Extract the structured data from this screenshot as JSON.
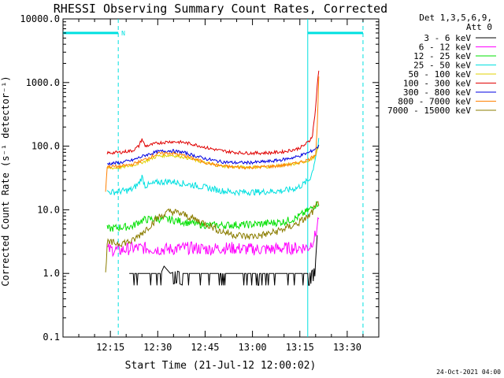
{
  "chart_data": {
    "type": "line",
    "title": "RHESSI Observing Summary Count Rates, Corrected",
    "xlabel": "Start Time (21-Jul-12 12:00:02)",
    "ylabel": "Corrected Count Rate (s⁻¹ detector⁻¹)",
    "y_scale": "log",
    "ylim": [
      0.1,
      10000
    ],
    "xlim_minutes": [
      0,
      100
    ],
    "x_ticks": [
      {
        "label": "12:15",
        "minutes": 15
      },
      {
        "label": "12:30",
        "minutes": 30
      },
      {
        "label": "12:45",
        "minutes": 45
      },
      {
        "label": "13:00",
        "minutes": 60
      },
      {
        "label": "13:15",
        "minutes": 75
      },
      {
        "label": "13:30",
        "minutes": 90
      }
    ],
    "y_ticks": [
      {
        "label": "0.1",
        "value": 0.1
      },
      {
        "label": "1.0",
        "value": 1
      },
      {
        "label": "10.0",
        "value": 10
      },
      {
        "label": "100.0",
        "value": 100
      },
      {
        "label": "1000.0",
        "value": 1000
      },
      {
        "label": "10000.0",
        "value": 10000
      }
    ],
    "legend_header": [
      "Det 1,3,5,6,9,",
      "Att 0"
    ],
    "legend_position": "right",
    "night_marker": "N",
    "footer_date": "24-Oct-2021 04:00",
    "series": [
      {
        "name": "3 - 6 keV",
        "color": "#000000",
        "x": [
          21,
          22,
          24,
          28,
          31,
          32,
          34,
          36,
          38,
          40,
          44,
          46,
          48,
          74,
          76,
          78,
          79.5,
          80,
          80.5
        ],
        "y": [
          1,
          1,
          1,
          1,
          1,
          1.3,
          1,
          1.1,
          1,
          1,
          1,
          1,
          1,
          1,
          1,
          1,
          1.2,
          1.6,
          4
        ]
      },
      {
        "name": "6 - 12 keV",
        "color": "#ff00ff",
        "x": [
          14,
          18,
          22,
          26,
          30,
          34,
          38,
          42,
          46,
          50,
          54,
          58,
          62,
          66,
          70,
          74,
          78,
          80,
          81
        ],
        "y": [
          2.4,
          2.3,
          2.5,
          2.5,
          2.4,
          2.4,
          2.5,
          2.5,
          2.4,
          2.5,
          2.5,
          2.4,
          2.4,
          2.4,
          2.5,
          2.5,
          2.6,
          4,
          8
        ]
      },
      {
        "name": "12 - 25 keV",
        "color": "#00e000",
        "x": [
          14,
          18,
          22,
          24,
          26,
          30,
          34,
          38,
          42,
          46,
          50,
          54,
          58,
          62,
          66,
          70,
          74,
          78,
          80,
          81
        ],
        "y": [
          5,
          5.3,
          5.5,
          6.5,
          7,
          7.2,
          7,
          6.5,
          6,
          5.7,
          5.7,
          5.8,
          5.8,
          6,
          6.2,
          6.5,
          7.5,
          10,
          12,
          13
        ]
      },
      {
        "name": "25 - 50 keV",
        "color": "#00e0e0",
        "x": [
          14,
          16,
          18,
          20,
          22,
          24,
          25,
          26,
          28,
          30,
          34,
          38,
          42,
          46,
          50,
          54,
          58,
          62,
          66,
          70,
          74,
          76,
          78,
          79,
          80,
          81
        ],
        "y": [
          19,
          19,
          19.5,
          20,
          21,
          26,
          33,
          24,
          25,
          27,
          28,
          26,
          24,
          22,
          20,
          19,
          19,
          19,
          19.5,
          20,
          22,
          25,
          30,
          40,
          70,
          120
        ]
      },
      {
        "name": "50 - 100 keV",
        "color": "#e0d000",
        "x": [
          14,
          18,
          22,
          26,
          30,
          34,
          38,
          42,
          46,
          50,
          54,
          58,
          62,
          66,
          70,
          74,
          78,
          80,
          81
        ],
        "y": [
          45,
          46,
          50,
          58,
          70,
          72,
          68,
          60,
          53,
          49,
          47,
          47,
          47,
          48,
          50,
          53,
          60,
          70,
          100
        ]
      },
      {
        "name": "100 - 300 keV",
        "color": "#e00000",
        "x": [
          14,
          18,
          22,
          24,
          25,
          26,
          28,
          30,
          34,
          38,
          42,
          46,
          50,
          54,
          58,
          62,
          66,
          70,
          74,
          76,
          78,
          79,
          80,
          80.5,
          81
        ],
        "y": [
          78,
          80,
          85,
          100,
          130,
          100,
          105,
          112,
          118,
          115,
          105,
          93,
          85,
          80,
          78,
          78,
          79,
          82,
          90,
          100,
          120,
          150,
          400,
          900,
          1500
        ]
      },
      {
        "name": "300 - 800 keV",
        "color": "#0000e0",
        "x": [
          14,
          18,
          22,
          26,
          30,
          34,
          38,
          42,
          46,
          50,
          54,
          58,
          62,
          66,
          70,
          74,
          78,
          80,
          81
        ],
        "y": [
          53,
          55,
          60,
          72,
          82,
          85,
          80,
          70,
          62,
          57,
          55,
          55,
          56,
          58,
          62,
          68,
          80,
          92,
          100
        ]
      },
      {
        "name": "800 - 7000 keV",
        "color": "#ff8000",
        "x": [
          13.5,
          14,
          18,
          22,
          26,
          30,
          34,
          38,
          42,
          46,
          50,
          54,
          58,
          62,
          66,
          70,
          74,
          78,
          80,
          80.5,
          81
        ],
        "y": [
          20,
          48,
          48,
          52,
          62,
          76,
          78,
          72,
          62,
          54,
          49,
          47,
          46,
          47,
          48,
          50,
          54,
          62,
          75,
          200,
          1200
        ]
      },
      {
        "name": "7000 - 15000 keV",
        "color": "#8b7d00",
        "x": [
          13.5,
          14,
          18,
          22,
          26,
          30,
          34,
          38,
          42,
          46,
          50,
          54,
          58,
          62,
          66,
          70,
          74,
          78,
          80,
          81
        ],
        "y": [
          1,
          3,
          3,
          3.2,
          4.8,
          7.5,
          9.5,
          8.5,
          7,
          5.8,
          4.6,
          4.1,
          3.8,
          3.9,
          4.3,
          5,
          6,
          8,
          11,
          13
        ]
      }
    ],
    "annotations": [
      {
        "type": "vline-dashed",
        "x": 17.5,
        "color": "#00e0e0"
      },
      {
        "type": "vline-solid",
        "x": 77.5,
        "color": "#00e0e0"
      },
      {
        "type": "vline-dashed",
        "x": 95,
        "color": "#00e0e0"
      },
      {
        "type": "hbar",
        "x": [
          0,
          17.5
        ],
        "y": 6000,
        "color": "#00e0e0"
      },
      {
        "type": "hbar",
        "x": [
          77.5,
          95
        ],
        "y": 6000,
        "color": "#00e0e0"
      }
    ]
  }
}
